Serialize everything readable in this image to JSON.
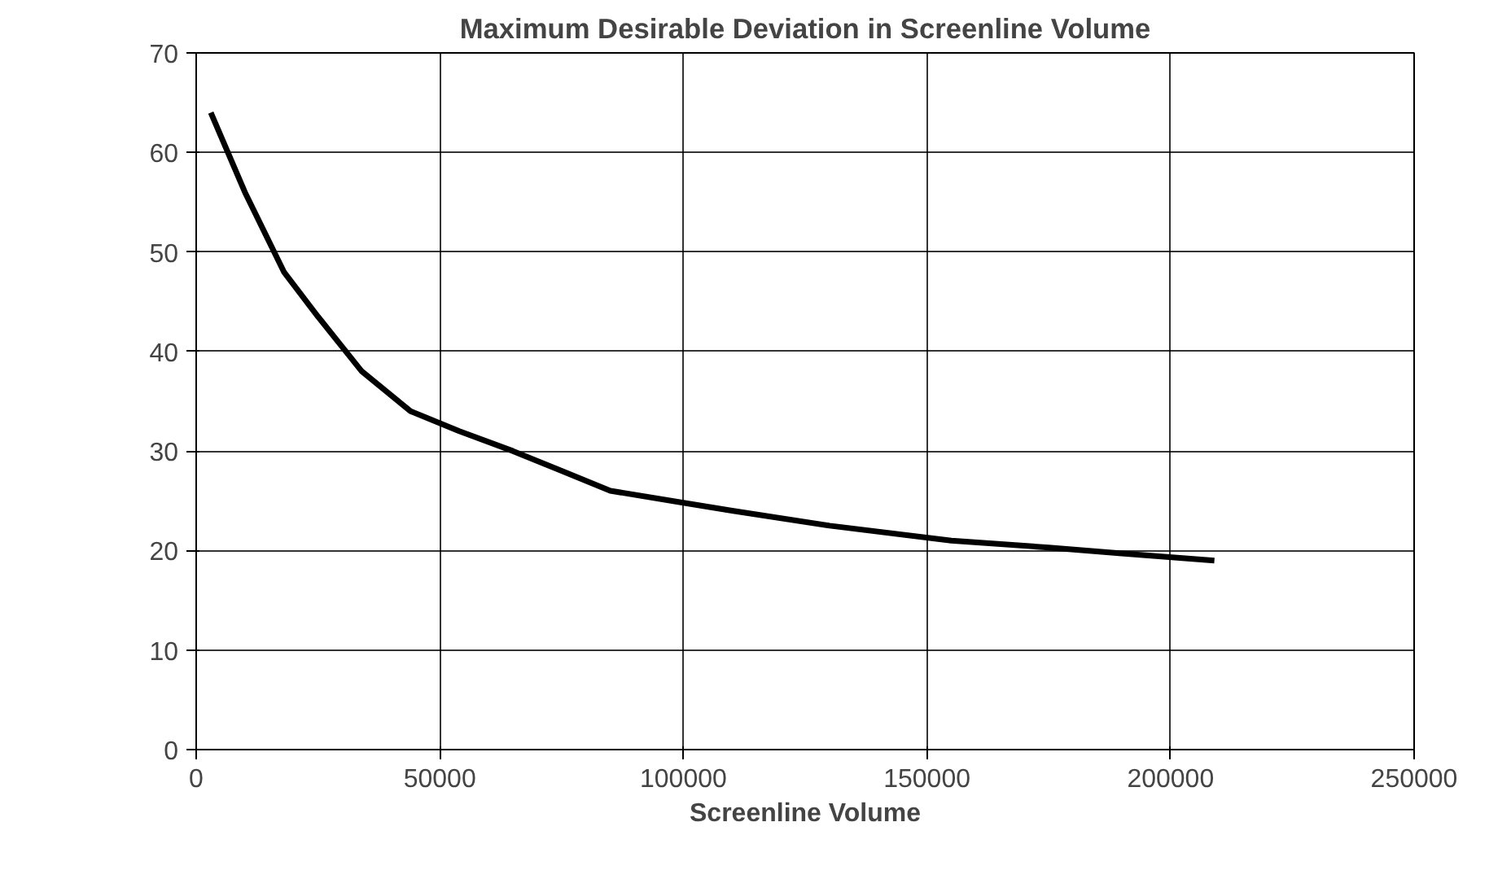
{
  "chart_data": {
    "type": "line",
    "title": "Maximum Desirable Deviation in Screenline Volume",
    "xlabel": "Screenline Volume",
    "x": [
      3000,
      10000,
      18000,
      25000,
      34000,
      44000,
      54000,
      65000,
      75000,
      85000,
      100000,
      110000,
      130000,
      155000,
      175000,
      190000,
      209000
    ],
    "series": [
      {
        "color": "#000000",
        "values": [
          64,
          56,
          48,
          43.5,
          38,
          34,
          32,
          30,
          28,
          26,
          24.8,
          24,
          22.5,
          21,
          20.3,
          19.7,
          19
        ]
      }
    ],
    "xlim": [
      0,
      250000
    ],
    "xticks": [
      0,
      50000,
      100000,
      150000,
      200000,
      250000
    ],
    "ylim": [
      0,
      70
    ],
    "yticks": [
      0,
      10,
      20,
      30,
      40,
      50,
      60,
      70
    ],
    "grid": true,
    "marker": "none",
    "line_style": "solid"
  }
}
